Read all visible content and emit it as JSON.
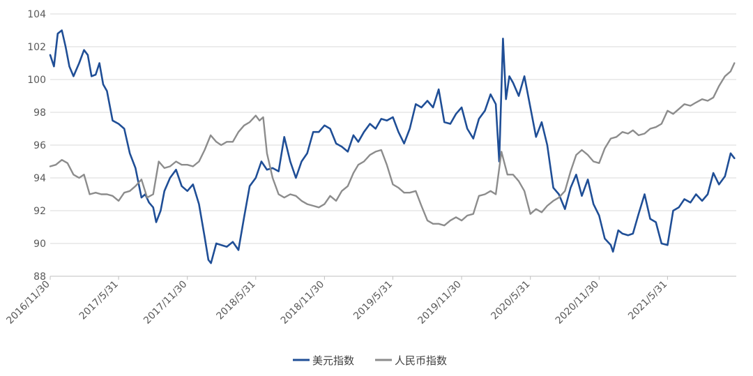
{
  "chart_data": {
    "type": "line",
    "title": "",
    "xlabel": "",
    "ylabel": "",
    "ylim": [
      88,
      104
    ],
    "yticks": [
      88,
      90,
      92,
      94,
      96,
      98,
      100,
      102,
      104
    ],
    "xlim": [
      "2016-11-30",
      "2021-11-30"
    ],
    "xticks": [
      "2016/11/30",
      "2017/5/31",
      "2017/11/30",
      "2018/5/31",
      "2018/11/30",
      "2019/5/31",
      "2019/11/30",
      "2020/5/31",
      "2020/11/30",
      "2021/5/31"
    ],
    "grid": "horizontal",
    "legend_position": "bottom-center",
    "series": [
      {
        "name": "美元指数",
        "color": "#1f4e96",
        "x": [
          "2016-11-30",
          "2016-12-10",
          "2016-12-20",
          "2016-12-31",
          "2017-01-10",
          "2017-01-20",
          "2017-01-31",
          "2017-02-15",
          "2017-02-28",
          "2017-03-10",
          "2017-03-20",
          "2017-03-31",
          "2017-04-10",
          "2017-04-20",
          "2017-04-30",
          "2017-05-15",
          "2017-05-31",
          "2017-06-15",
          "2017-06-30",
          "2017-07-15",
          "2017-07-31",
          "2017-08-10",
          "2017-08-20",
          "2017-08-31",
          "2017-09-08",
          "2017-09-20",
          "2017-09-30",
          "2017-10-15",
          "2017-10-31",
          "2017-11-15",
          "2017-11-30",
          "2017-12-15",
          "2017-12-31",
          "2018-01-15",
          "2018-01-25",
          "2018-02-01",
          "2018-02-15",
          "2018-02-28",
          "2018-03-15",
          "2018-03-31",
          "2018-04-15",
          "2018-04-30",
          "2018-05-15",
          "2018-05-31",
          "2018-06-15",
          "2018-06-30",
          "2018-07-15",
          "2018-07-31",
          "2018-08-15",
          "2018-08-31",
          "2018-09-15",
          "2018-09-30",
          "2018-10-15",
          "2018-10-31",
          "2018-11-15",
          "2018-11-30",
          "2018-12-15",
          "2018-12-31",
          "2019-01-15",
          "2019-01-31",
          "2019-02-15",
          "2019-02-28",
          "2019-03-15",
          "2019-03-31",
          "2019-04-15",
          "2019-04-30",
          "2019-05-15",
          "2019-05-31",
          "2019-06-15",
          "2019-06-30",
          "2019-07-15",
          "2019-07-31",
          "2019-08-15",
          "2019-08-31",
          "2019-09-15",
          "2019-09-30",
          "2019-10-15",
          "2019-10-31",
          "2019-11-15",
          "2019-11-30",
          "2019-12-15",
          "2019-12-31",
          "2020-01-15",
          "2020-01-31",
          "2020-02-15",
          "2020-02-29",
          "2020-03-09",
          "2020-03-19",
          "2020-03-27",
          "2020-04-05",
          "2020-04-15",
          "2020-04-30",
          "2020-05-15",
          "2020-05-31",
          "2020-06-15",
          "2020-06-30",
          "2020-07-15",
          "2020-07-31",
          "2020-08-15",
          "2020-08-31",
          "2020-09-15",
          "2020-09-30",
          "2020-10-15",
          "2020-10-31",
          "2020-11-15",
          "2020-11-30",
          "2020-12-15",
          "2020-12-31",
          "2021-01-06",
          "2021-01-20",
          "2021-01-31",
          "2021-02-15",
          "2021-02-28",
          "2021-03-15",
          "2021-03-31",
          "2021-04-15",
          "2021-04-30",
          "2021-05-15",
          "2021-05-31",
          "2021-06-15",
          "2021-06-30",
          "2021-07-15",
          "2021-07-31",
          "2021-08-15",
          "2021-08-31",
          "2021-09-15",
          "2021-09-30",
          "2021-10-15",
          "2021-10-31",
          "2021-11-15",
          "2021-11-25"
        ],
        "y": [
          101.5,
          100.8,
          102.8,
          103.0,
          102.0,
          100.8,
          100.2,
          101.0,
          101.8,
          101.5,
          100.2,
          100.3,
          101.0,
          99.7,
          99.3,
          97.5,
          97.3,
          97.0,
          95.5,
          94.6,
          92.8,
          93.0,
          92.5,
          92.2,
          91.3,
          92.0,
          93.2,
          94.0,
          94.5,
          93.5,
          93.2,
          93.6,
          92.4,
          90.4,
          89.0,
          88.8,
          90.0,
          89.9,
          89.8,
          90.1,
          89.6,
          91.6,
          93.5,
          94.0,
          95.0,
          94.5,
          94.6,
          94.4,
          96.5,
          95.0,
          94.0,
          95.0,
          95.5,
          96.8,
          96.8,
          97.2,
          97.0,
          96.1,
          95.9,
          95.6,
          96.6,
          96.2,
          96.8,
          97.3,
          97.0,
          97.6,
          97.5,
          97.7,
          96.8,
          96.1,
          97.0,
          98.5,
          98.3,
          98.7,
          98.3,
          99.4,
          97.4,
          97.3,
          97.9,
          98.3,
          97.0,
          96.4,
          97.6,
          98.1,
          99.1,
          98.5,
          95.0,
          102.5,
          98.8,
          100.2,
          99.8,
          99.0,
          100.2,
          98.3,
          96.5,
          97.4,
          96.0,
          93.4,
          93.0,
          92.1,
          93.4,
          94.2,
          92.9,
          93.9,
          92.4,
          91.7,
          90.3,
          89.9,
          89.5,
          90.8,
          90.6,
          90.5,
          90.6,
          91.8,
          93.0,
          91.5,
          91.3,
          90.0,
          89.9,
          92.0,
          92.2,
          92.7,
          92.5,
          93.0,
          92.6,
          93.0,
          94.3,
          93.6,
          94.1,
          95.5,
          95.2
        ]
      },
      {
        "name": "人民币指数",
        "color": "#8c8c8c",
        "x": [
          "2016-11-30",
          "2016-12-15",
          "2016-12-31",
          "2017-01-15",
          "2017-01-31",
          "2017-02-15",
          "2017-02-28",
          "2017-03-15",
          "2017-03-31",
          "2017-04-15",
          "2017-04-30",
          "2017-05-15",
          "2017-05-31",
          "2017-06-15",
          "2017-06-30",
          "2017-07-15",
          "2017-07-31",
          "2017-08-15",
          "2017-08-31",
          "2017-09-15",
          "2017-09-30",
          "2017-10-15",
          "2017-10-31",
          "2017-11-15",
          "2017-11-30",
          "2017-12-15",
          "2017-12-31",
          "2018-01-15",
          "2018-01-31",
          "2018-02-15",
          "2018-02-28",
          "2018-03-15",
          "2018-03-31",
          "2018-04-15",
          "2018-04-30",
          "2018-05-15",
          "2018-05-31",
          "2018-06-10",
          "2018-06-20",
          "2018-06-30",
          "2018-07-15",
          "2018-07-31",
          "2018-08-15",
          "2018-08-31",
          "2018-09-15",
          "2018-09-30",
          "2018-10-15",
          "2018-10-31",
          "2018-11-15",
          "2018-11-30",
          "2018-12-15",
          "2018-12-31",
          "2019-01-15",
          "2019-01-31",
          "2019-02-15",
          "2019-02-28",
          "2019-03-15",
          "2019-03-31",
          "2019-04-15",
          "2019-04-30",
          "2019-05-15",
          "2019-05-31",
          "2019-06-15",
          "2019-06-30",
          "2019-07-15",
          "2019-07-31",
          "2019-08-15",
          "2019-08-31",
          "2019-09-15",
          "2019-09-30",
          "2019-10-15",
          "2019-10-31",
          "2019-11-15",
          "2019-11-30",
          "2019-12-15",
          "2019-12-31",
          "2020-01-15",
          "2020-01-31",
          "2020-02-15",
          "2020-02-29",
          "2020-03-15",
          "2020-03-31",
          "2020-04-15",
          "2020-04-30",
          "2020-05-15",
          "2020-05-31",
          "2020-06-15",
          "2020-06-30",
          "2020-07-15",
          "2020-07-31",
          "2020-08-15",
          "2020-08-31",
          "2020-09-15",
          "2020-09-30",
          "2020-10-15",
          "2020-10-31",
          "2020-11-15",
          "2020-11-30",
          "2020-12-15",
          "2020-12-31",
          "2021-01-15",
          "2021-01-31",
          "2021-02-15",
          "2021-02-28",
          "2021-03-15",
          "2021-03-31",
          "2021-04-15",
          "2021-04-30",
          "2021-05-15",
          "2021-05-31",
          "2021-06-15",
          "2021-06-30",
          "2021-07-15",
          "2021-07-31",
          "2021-08-15",
          "2021-08-31",
          "2021-09-15",
          "2021-09-30",
          "2021-10-15",
          "2021-10-31",
          "2021-11-15",
          "2021-11-25"
        ],
        "y": [
          94.7,
          94.8,
          95.1,
          94.9,
          94.2,
          94.0,
          94.2,
          93.0,
          93.1,
          93.0,
          93.0,
          92.9,
          92.6,
          93.1,
          93.2,
          93.5,
          93.9,
          92.8,
          93.0,
          95.0,
          94.6,
          94.7,
          95.0,
          94.8,
          94.8,
          94.7,
          95.0,
          95.7,
          96.6,
          96.2,
          96.0,
          96.2,
          96.2,
          96.8,
          97.2,
          97.4,
          97.8,
          97.5,
          97.7,
          95.5,
          94.0,
          93.0,
          92.8,
          93.0,
          92.9,
          92.6,
          92.4,
          92.3,
          92.2,
          92.4,
          92.9,
          92.6,
          93.2,
          93.5,
          94.3,
          94.8,
          95.0,
          95.4,
          95.6,
          95.7,
          94.8,
          93.6,
          93.4,
          93.1,
          93.1,
          93.2,
          92.3,
          91.4,
          91.2,
          91.2,
          91.1,
          91.4,
          91.6,
          91.4,
          91.7,
          91.8,
          92.9,
          93.0,
          93.2,
          93.0,
          95.6,
          94.2,
          94.2,
          93.8,
          93.2,
          91.8,
          92.1,
          91.9,
          92.3,
          92.6,
          92.8,
          93.2,
          94.4,
          95.4,
          95.7,
          95.4,
          95.0,
          94.9,
          95.8,
          96.4,
          96.5,
          96.8,
          96.7,
          96.9,
          96.6,
          96.7,
          97.0,
          97.1,
          97.3,
          98.1,
          97.9,
          98.2,
          98.5,
          98.4,
          98.6,
          98.8,
          98.7,
          98.9,
          99.6,
          100.2,
          100.5,
          101.0
        ]
      }
    ]
  }
}
